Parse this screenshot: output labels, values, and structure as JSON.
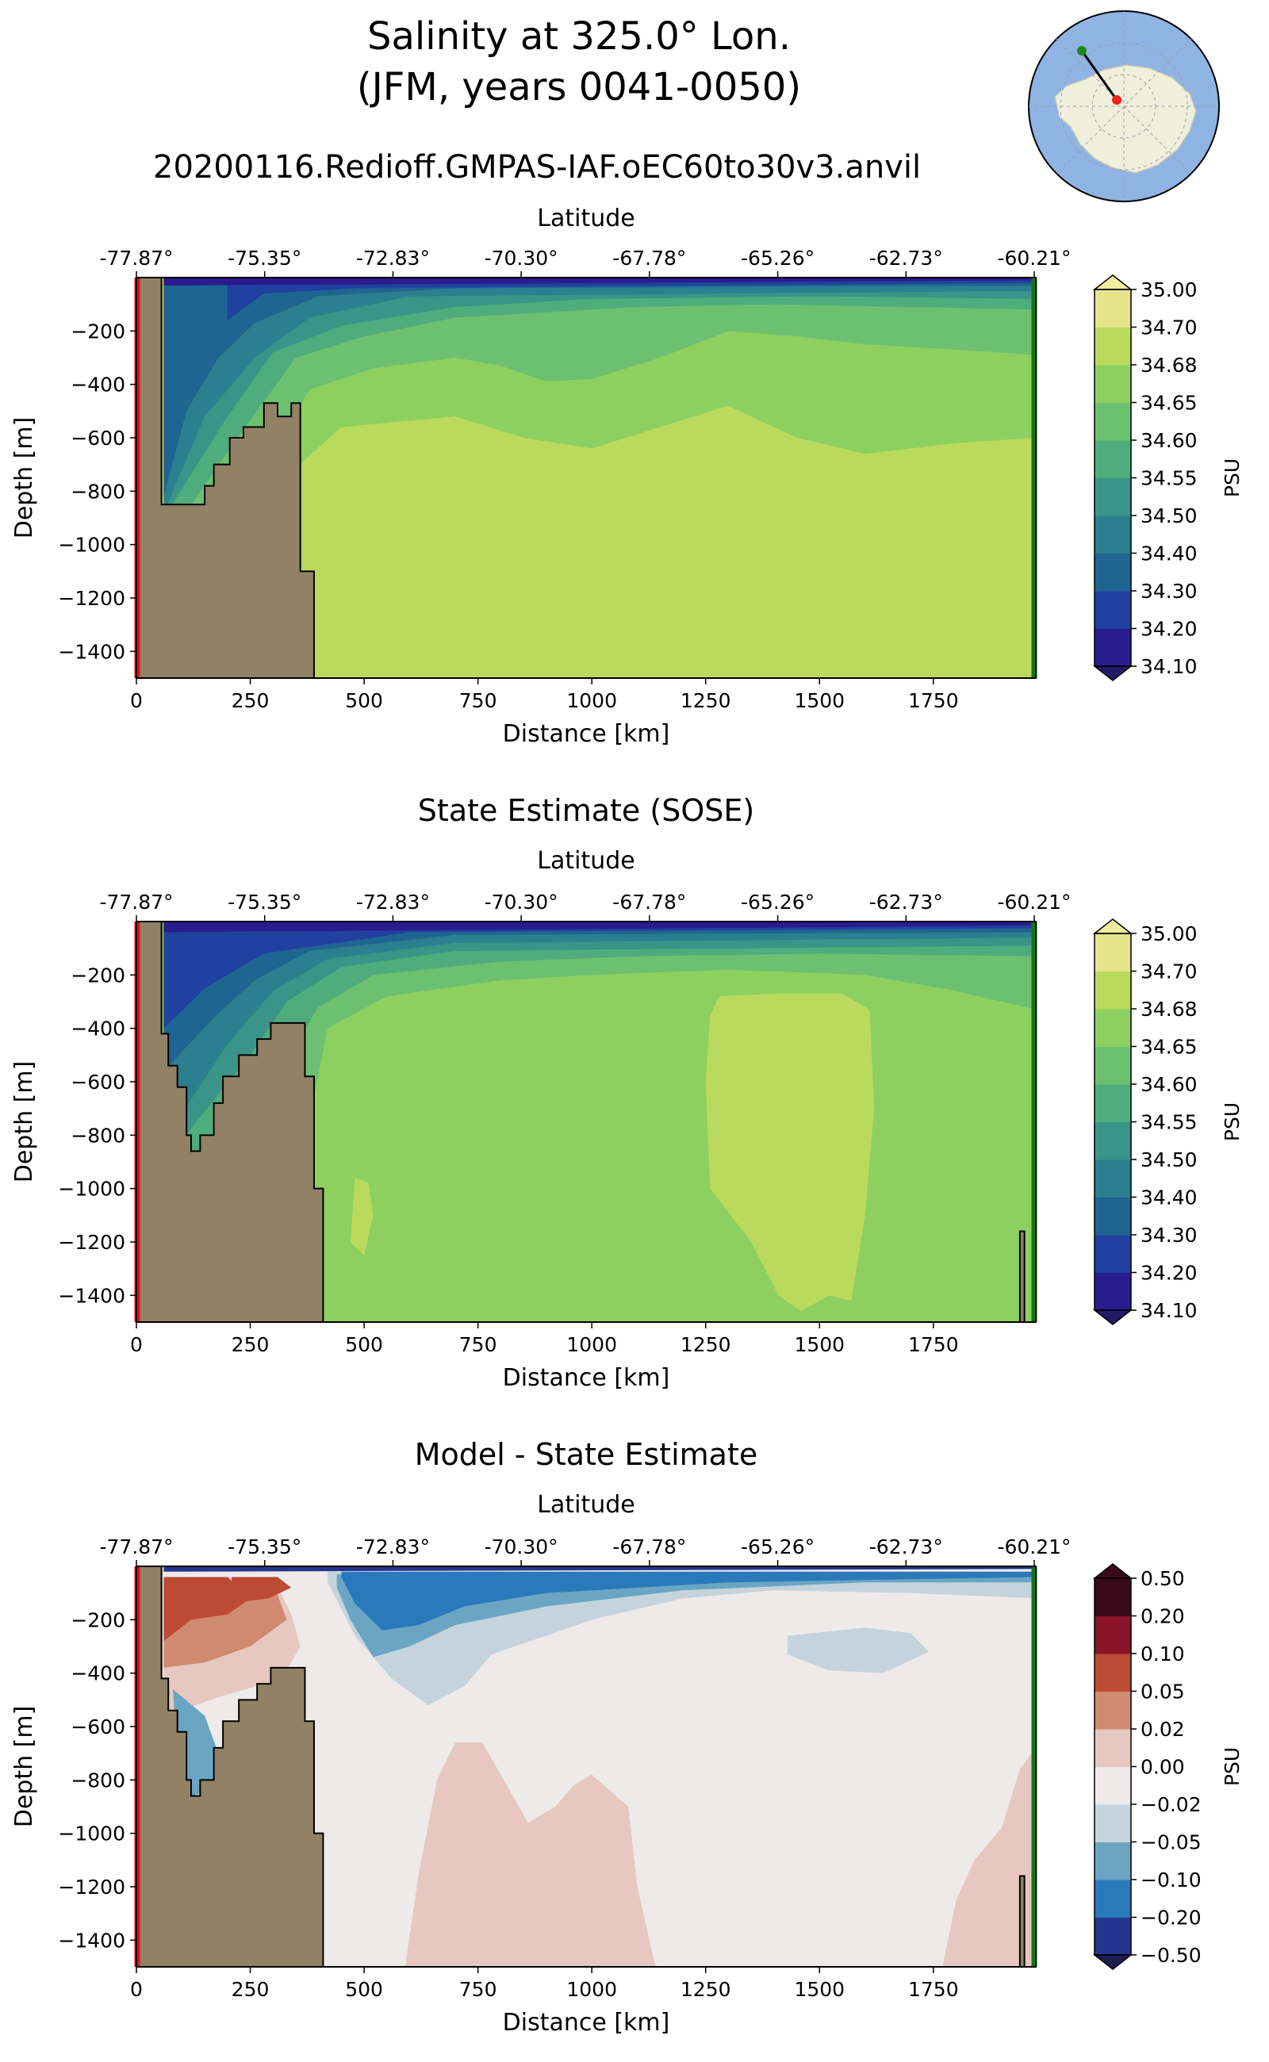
{
  "figure": {
    "title_line1": "Salinity at 325.0° Lon.",
    "title_line2": "(JFM, years 0041-0050)",
    "run_name": "20200116.Redioff.GMPAS-IAF.oEC60to30v3.anvil"
  },
  "inset_map": {
    "description_colors": {
      "ocean": "#8fb4e3",
      "land": "#efefdc",
      "start_marker": "#1a8a1a",
      "end_marker": "#ee2222"
    }
  },
  "panels": [
    {
      "title": "",
      "kind": "model"
    },
    {
      "title": "State Estimate (SOSE)",
      "kind": "sose"
    },
    {
      "title": "Model - State Estimate",
      "kind": "diff"
    }
  ],
  "chart_data": [
    {
      "type": "heatmap",
      "title": "Salinity at 325.0° Lon. (JFM, years 0041-0050) — 20200116.Redioff.GMPAS-IAF.oEC60to30v3.anvil",
      "xlabel": "Distance [km]",
      "ylabel": "Depth [m]",
      "top_xlabel": "Latitude",
      "xlim": [
        0,
        1975
      ],
      "ylim": [
        -1500,
        0
      ],
      "x_ticks": [
        0,
        250,
        500,
        750,
        1000,
        1250,
        1500,
        1750
      ],
      "y_ticks": [
        -200,
        -400,
        -600,
        -800,
        -1000,
        -1200,
        -1400
      ],
      "lat_ticks": [
        "-77.87°",
        "-75.35°",
        "-72.83°",
        "-70.30°",
        "-67.78°",
        "-65.26°",
        "-62.73°",
        "-60.21°"
      ],
      "colorbar": {
        "label": "PSU",
        "levels": [
          "34.10",
          "34.20",
          "34.30",
          "34.40",
          "34.50",
          "34.55",
          "34.60",
          "34.65",
          "34.68",
          "34.70",
          "35.00"
        ],
        "colors": [
          "#2a1b8f",
          "#2041a0",
          "#1f6591",
          "#2c7f8e",
          "#3a9488",
          "#4fac7c",
          "#6cc070",
          "#8dd060",
          "#bada5e",
          "#e6e48a"
        ],
        "extend": "both"
      },
      "contour_depths_at_x": {
        "x": [
          60,
          250,
          500,
          750,
          1000,
          1250,
          1500,
          1750,
          1965
        ],
        "34.68": [
          null,
          -1300,
          -560,
          -520,
          -640,
          -480,
          -640,
          -620,
          -600
        ],
        "34.65": [
          null,
          -700,
          -320,
          -300,
          -380,
          -180,
          -230,
          -280,
          -290
        ],
        "34.60": [
          null,
          -450,
          -220,
          -160,
          -130,
          -110,
          -110,
          -120,
          -120
        ]
      }
    },
    {
      "type": "heatmap",
      "title": "State Estimate (SOSE)",
      "xlabel": "Distance [km]",
      "ylabel": "Depth [m]",
      "top_xlabel": "Latitude",
      "xlim": [
        0,
        1975
      ],
      "ylim": [
        -1500,
        0
      ],
      "x_ticks": [
        0,
        250,
        500,
        750,
        1000,
        1250,
        1500,
        1750
      ],
      "y_ticks": [
        -200,
        -400,
        -600,
        -800,
        -1000,
        -1200,
        -1400
      ],
      "lat_ticks": [
        "-77.87°",
        "-75.35°",
        "-72.83°",
        "-70.30°",
        "-67.78°",
        "-65.26°",
        "-62.73°",
        "-60.21°"
      ],
      "colorbar": {
        "label": "PSU",
        "levels": [
          "34.10",
          "34.20",
          "34.30",
          "34.40",
          "34.50",
          "34.55",
          "34.60",
          "34.65",
          "34.68",
          "34.70",
          "35.00"
        ],
        "colors": [
          "#2a1b8f",
          "#2041a0",
          "#1f6591",
          "#2c7f8e",
          "#3a9488",
          "#4fac7c",
          "#6cc070",
          "#8dd060",
          "#bada5e",
          "#e6e48a"
        ],
        "extend": "both"
      },
      "high_salinity_core": {
        "x_range_km": [
          1250,
          1610
        ],
        "depth_range_m": [
          -1450,
          -270
        ],
        "level": "34.68"
      }
    },
    {
      "type": "heatmap",
      "title": "Model - State Estimate",
      "xlabel": "Distance [km]",
      "ylabel": "Depth [m]",
      "top_xlabel": "Latitude",
      "xlim": [
        0,
        1975
      ],
      "ylim": [
        -1500,
        0
      ],
      "x_ticks": [
        0,
        250,
        500,
        750,
        1000,
        1250,
        1500,
        1750
      ],
      "y_ticks": [
        -200,
        -400,
        -600,
        -800,
        -1000,
        -1200,
        -1400
      ],
      "lat_ticks": [
        "-77.87°",
        "-75.35°",
        "-72.83°",
        "-70.30°",
        "-67.78°",
        "-65.26°",
        "-62.73°",
        "-60.21°"
      ],
      "colorbar": {
        "label": "PSU",
        "levels": [
          "−0.50",
          "−0.20",
          "−0.10",
          "−0.05",
          "−0.02",
          "0.00",
          "0.02",
          "0.05",
          "0.10",
          "0.20",
          "0.50"
        ],
        "colors": [
          "#25358f",
          "#2a79bb",
          "#6aa6c3",
          "#c5d4dc",
          "#efeaea",
          "#e6c8c0",
          "#d08a70",
          "#bc4a34",
          "#8a1428",
          "#3a0a1a"
        ],
        "extend": "both"
      }
    }
  ]
}
